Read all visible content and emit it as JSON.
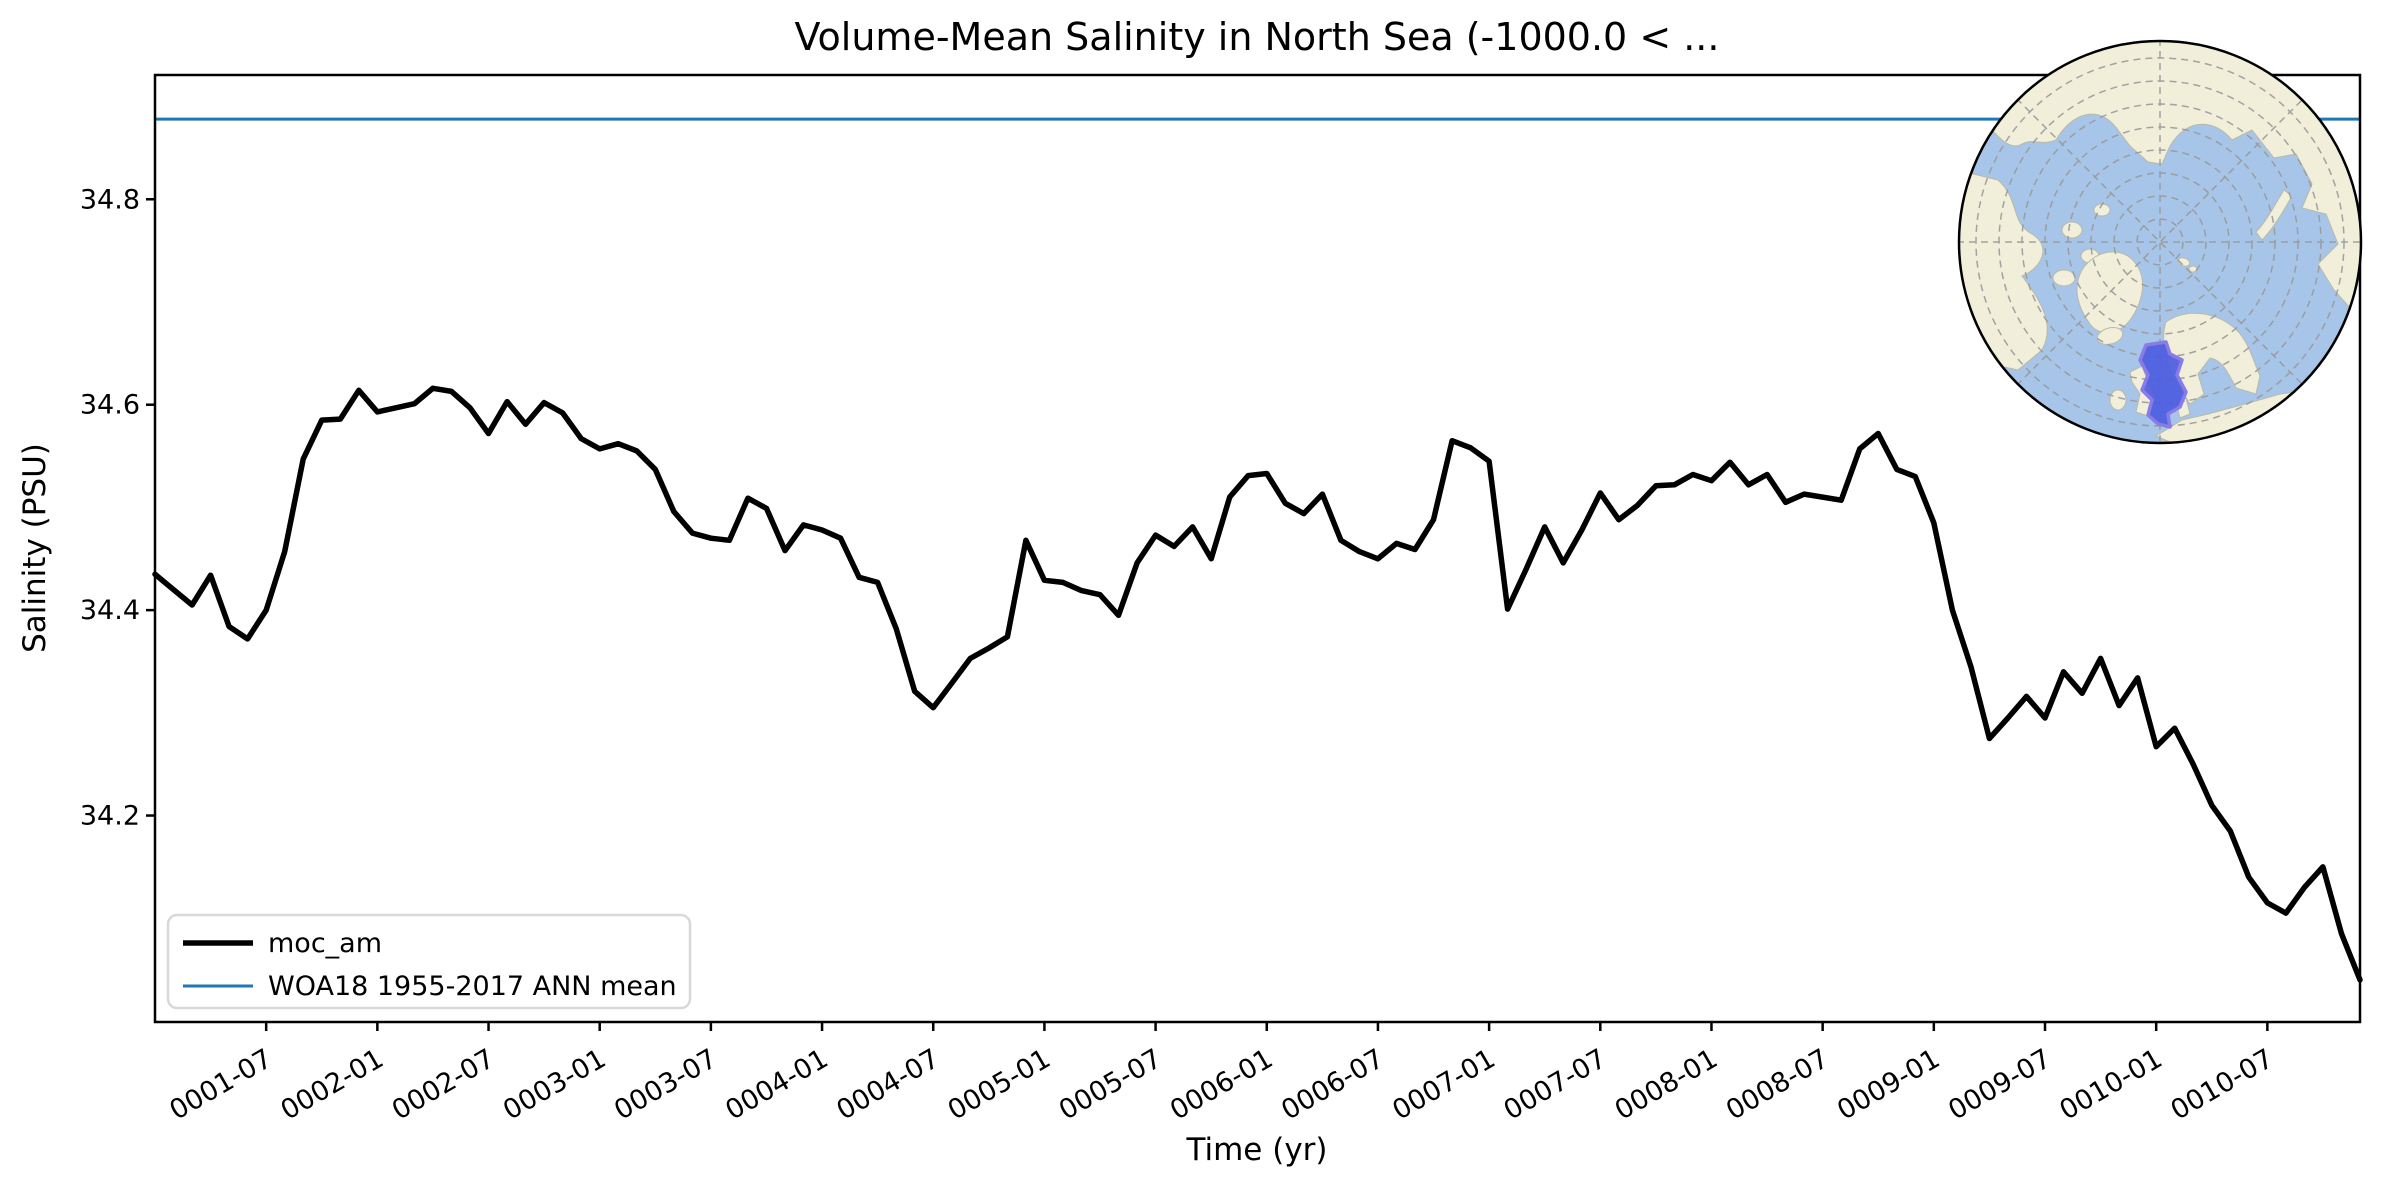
{
  "title": "Volume-Mean Salinity in North Sea (-1000.0 < ...",
  "chart_data": {
    "type": "line",
    "title": "Volume-Mean Salinity in North Sea (-1000.0 < ...",
    "xlabel": "Time (yr)",
    "ylabel": "Salinity (PSU)",
    "ylim": [
      34.0,
      34.92
    ],
    "y_ticks": [
      "34.2",
      "34.4",
      "34.6",
      "34.8"
    ],
    "y_tick_values": [
      34.2,
      34.4,
      34.6,
      34.8
    ],
    "x_ticks": [
      "0001-07",
      "0002-01",
      "0002-07",
      "0003-01",
      "0003-07",
      "0004-01",
      "0004-07",
      "0005-01",
      "0005-07",
      "0006-01",
      "0006-07",
      "0007-01",
      "0007-07",
      "0008-01",
      "0008-07",
      "0009-01",
      "0009-07",
      "0010-01",
      "0010-07"
    ],
    "x_tick_rotation_deg": 30,
    "grid": false,
    "legend_position": "lower left",
    "x": [
      "0001-01",
      "0001-02",
      "0001-03",
      "0001-04",
      "0001-05",
      "0001-06",
      "0001-07",
      "0001-08",
      "0001-09",
      "0001-10",
      "0001-11",
      "0001-12",
      "0002-01",
      "0002-02",
      "0002-03",
      "0002-04",
      "0002-05",
      "0002-06",
      "0002-07",
      "0002-08",
      "0002-09",
      "0002-10",
      "0002-11",
      "0002-12",
      "0003-01",
      "0003-02",
      "0003-03",
      "0003-04",
      "0003-05",
      "0003-06",
      "0003-07",
      "0003-08",
      "0003-09",
      "0003-10",
      "0003-11",
      "0003-12",
      "0004-01",
      "0004-02",
      "0004-03",
      "0004-04",
      "0004-05",
      "0004-06",
      "0004-07",
      "0004-08",
      "0004-09",
      "0004-10",
      "0004-11",
      "0004-12",
      "0005-01",
      "0005-02",
      "0005-03",
      "0005-04",
      "0005-05",
      "0005-06",
      "0005-07",
      "0005-08",
      "0005-09",
      "0005-10",
      "0005-11",
      "0005-12",
      "0006-01",
      "0006-02",
      "0006-03",
      "0006-04",
      "0006-05",
      "0006-06",
      "0006-07",
      "0006-08",
      "0006-09",
      "0006-10",
      "0006-11",
      "0006-12",
      "0007-01",
      "0007-02",
      "0007-03",
      "0007-04",
      "0007-05",
      "0007-06",
      "0007-07",
      "0007-08",
      "0007-09",
      "0007-10",
      "0007-11",
      "0007-12",
      "0008-01",
      "0008-02",
      "0008-03",
      "0008-04",
      "0008-05",
      "0008-06",
      "0008-07",
      "0008-08",
      "0008-09",
      "0008-10",
      "0008-11",
      "0008-12",
      "0009-01",
      "0009-02",
      "0009-03",
      "0009-04",
      "0009-05",
      "0009-06",
      "0009-07",
      "0009-08",
      "0009-09",
      "0009-10",
      "0009-11",
      "0009-12",
      "0010-01",
      "0010-02",
      "0010-03",
      "0010-04",
      "0010-05",
      "0010-06",
      "0010-07",
      "0010-08",
      "0010-09",
      "0010-10",
      "0010-11",
      "0010-12"
    ],
    "series": [
      {
        "name": "moc_am",
        "color": "#000000",
        "linewidth": 5.5,
        "values": [
          34.435,
          34.42,
          34.405,
          34.434,
          34.384,
          34.372,
          34.4,
          34.457,
          34.547,
          34.585,
          34.586,
          34.614,
          34.593,
          34.597,
          34.601,
          34.616,
          34.613,
          34.597,
          34.572,
          34.603,
          34.581,
          34.602,
          34.592,
          34.567,
          34.557,
          34.562,
          34.555,
          34.537,
          34.496,
          34.475,
          34.47,
          34.468,
          34.509,
          34.499,
          34.458,
          34.483,
          34.478,
          34.47,
          34.432,
          34.427,
          34.382,
          34.321,
          34.305,
          34.329,
          34.353,
          34.363,
          34.374,
          34.468,
          34.429,
          34.427,
          34.419,
          34.415,
          34.395,
          34.446,
          34.473,
          34.462,
          34.481,
          34.45,
          34.51,
          34.531,
          34.533,
          34.504,
          34.494,
          34.513,
          34.468,
          34.457,
          34.45,
          34.465,
          34.459,
          34.488,
          34.565,
          34.558,
          34.545,
          34.401,
          34.44,
          34.481,
          34.446,
          34.478,
          34.514,
          34.488,
          34.502,
          34.521,
          34.522,
          34.532,
          34.526,
          34.544,
          34.522,
          34.532,
          34.505,
          34.513,
          34.51,
          34.507,
          34.557,
          34.572,
          34.537,
          34.53,
          34.485,
          34.4,
          34.345,
          34.275,
          34.295,
          34.316,
          34.295,
          34.34,
          34.319,
          34.353,
          34.307,
          34.334,
          34.267,
          34.285,
          34.25,
          34.21,
          34.185,
          34.14,
          34.115,
          34.105,
          34.13,
          34.15,
          34.085,
          34.04
        ]
      }
    ],
    "reference_line": {
      "label": "WOA18 1955-2017 ANN mean",
      "value": 34.878,
      "color": "#1f77b4",
      "linewidth": 3
    }
  },
  "legend": {
    "entries": [
      {
        "label": "moc_am",
        "color": "#000000"
      },
      {
        "label": "WOA18 1955-2017 ANN mean",
        "color": "#1f77b4"
      }
    ]
  },
  "inset_map": {
    "kind": "north-polar locator map",
    "highlight_region": "North Sea",
    "ocean_color": "#a7c5e8",
    "land_color": "#f1efda",
    "highlight_fill": "#4d5ce0",
    "highlight_stroke": "#8a7ce8",
    "graticule_color": "#999999"
  },
  "colors": {
    "background": "#ffffff",
    "axes": "#000000",
    "legend_border": "#d8d8d8"
  }
}
